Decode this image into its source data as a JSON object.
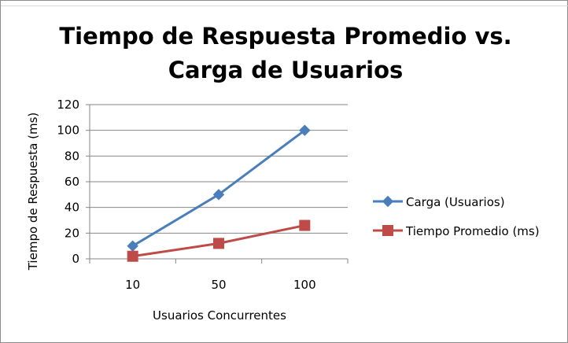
{
  "chart_data": {
    "type": "line",
    "title_line1": "Tiempo de Respuesta Promedio vs.",
    "title_line2": "Carga de Usuarios",
    "xlabel": "Usuarios Concurrentes",
    "ylabel": "Tiempo de Respuesta (ms)",
    "categories": [
      "10",
      "50",
      "100"
    ],
    "ylim": [
      0,
      120
    ],
    "yticks": [
      "0",
      "20",
      "40",
      "60",
      "80",
      "100",
      "120"
    ],
    "ytick_values": [
      0,
      20,
      40,
      60,
      80,
      100,
      120
    ],
    "grid": true,
    "legend_position": "right",
    "series": [
      {
        "name": "Carga (Usuarios)",
        "values": [
          10,
          50,
          100
        ],
        "color": "#4a7ebb",
        "marker": "diamond"
      },
      {
        "name": "Tiempo Promedio (ms)",
        "values": [
          2,
          12,
          26
        ],
        "color": "#be4b48",
        "marker": "square"
      }
    ]
  }
}
